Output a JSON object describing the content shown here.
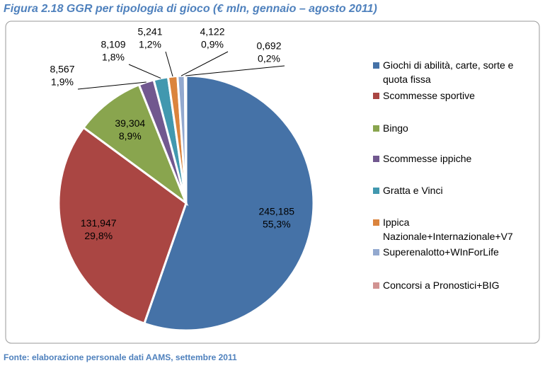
{
  "chart_data": {
    "type": "pie",
    "title": "Figura 2.18 GGR per tipologia di gioco (€ mln, gennaio – agosto 2011)",
    "source": "Fonte: elaborazione personale dati AAMS, settembre 2011",
    "categories": [
      "Giochi di abilità, carte, sorte e quota fissa",
      "Scommesse sportive",
      "Bingo",
      "Scommesse ippiche",
      "Gratta e Vinci",
      "Ippica Nazionale+Internazionale+V7",
      "Superenalotto+WInForLife",
      "Concorsi a Pronostici+BIG"
    ],
    "values": [
      245.185,
      131.947,
      39.304,
      8.567,
      8.109,
      5.241,
      4.122,
      0.692
    ],
    "value_labels": [
      "245,185",
      "131,947",
      "39,304",
      "8,567",
      "8,109",
      "5,241",
      "4,122",
      "0,692"
    ],
    "percents": [
      55.3,
      29.8,
      8.9,
      1.9,
      1.8,
      1.2,
      0.9,
      0.2
    ],
    "percent_labels": [
      "55,3%",
      "29,8%",
      "8,9%",
      "1,9%",
      "1,8%",
      "1,2%",
      "0,9%",
      "0,2%"
    ],
    "colors": [
      "#4572a7",
      "#aa4643",
      "#89a54e",
      "#71588f",
      "#4198af",
      "#db843d",
      "#93a9cf",
      "#d19392"
    ],
    "legend": "right"
  }
}
